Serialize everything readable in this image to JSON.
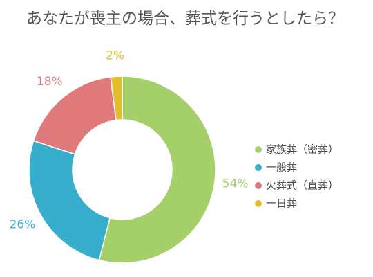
{
  "chart_data": {
    "type": "pie",
    "variant": "donut",
    "title": "あなたが喪主の場合、葬式を行うとしたら？",
    "categories": [
      "家族葬（密葬）",
      "一般葬",
      "火葬式（直葬）",
      "一日葬"
    ],
    "values": [
      54,
      26,
      18,
      2
    ],
    "value_labels": [
      "54%",
      "26%",
      "18%",
      "2%"
    ],
    "unit": "%",
    "colors": [
      "#a5cf6a",
      "#37aecb",
      "#e07a7a",
      "#e3bf2e"
    ],
    "legend_position": "right"
  }
}
